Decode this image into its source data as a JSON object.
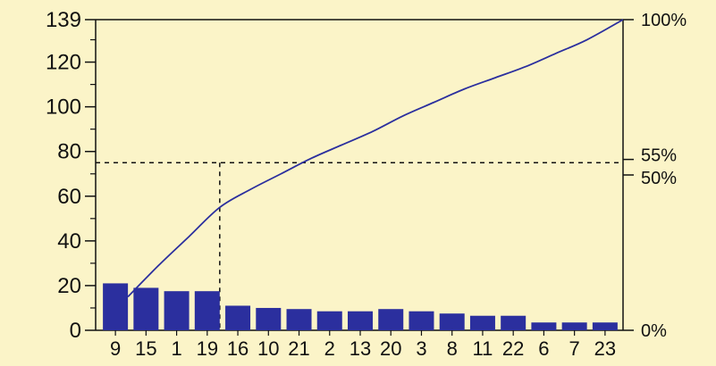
{
  "colors": {
    "background": "#fbf4c8",
    "bar": "#2b2f9e",
    "line": "#2b2f9e",
    "axis": "#111111"
  },
  "chart_data": {
    "type": "bar",
    "title": "",
    "xlabel": "",
    "ylabel": "",
    "categories": [
      "9",
      "15",
      "1",
      "19",
      "16",
      "10",
      "21",
      "2",
      "13",
      "20",
      "3",
      "8",
      "11",
      "22",
      "6",
      "7",
      "23"
    ],
    "series": [
      {
        "type": "bar",
        "values": [
          21,
          19,
          17.5,
          17.5,
          11,
          10,
          9.5,
          8.5,
          8.5,
          9.5,
          8.5,
          7.5,
          6.5,
          6.5,
          3.5,
          3.5,
          3.5
        ]
      },
      {
        "type": "line",
        "axis": "right",
        "description": "cumulative percentage",
        "values": [
          15,
          29,
          42,
          55,
          63,
          70,
          77,
          83,
          89,
          96,
          102,
          108,
          113,
          118,
          124,
          130,
          139
        ]
      }
    ],
    "ylim": [
      0,
      139
    ],
    "yticks": [
      "0",
      "20",
      "40",
      "60",
      "80",
      "100",
      "120",
      "139"
    ],
    "ytick_values": [
      0,
      20,
      40,
      60,
      80,
      100,
      120,
      139
    ],
    "y2ticks": [
      "0%",
      "50%",
      "55%",
      "100%"
    ],
    "y2tick_values": [
      0,
      50,
      55,
      100
    ],
    "reference": {
      "y": 75,
      "x_category": "19",
      "style": "dashed"
    },
    "grid": false,
    "legend": "none"
  }
}
